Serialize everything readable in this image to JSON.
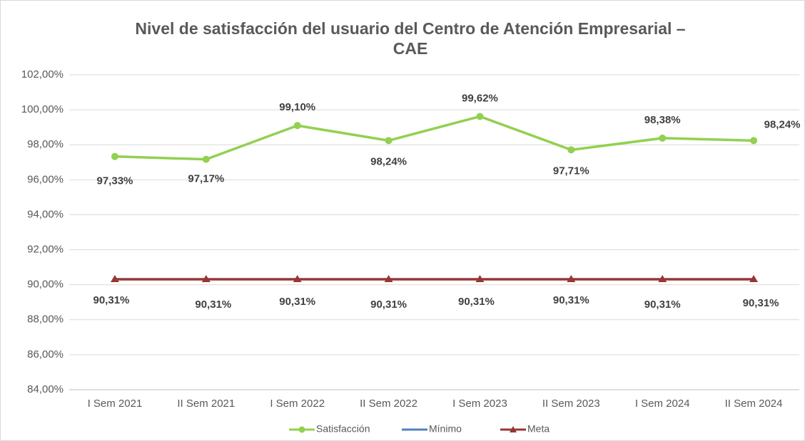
{
  "chart_data": {
    "type": "line",
    "title": [
      "Nivel de satisfacción del usuario del Centro de Atención Empresarial –",
      "CAE"
    ],
    "categories": [
      "I Sem 2021",
      "II Sem 2021",
      "I Sem 2022",
      "II Sem 2022",
      "I Sem 2023",
      "II Sem 2023",
      "I Sem 2024",
      "II Sem 2024"
    ],
    "series": [
      {
        "name": "Satisfacción",
        "color": "#92d050",
        "marker": "circle",
        "values": [
          97.33,
          97.17,
          99.1,
          98.24,
          99.62,
          97.71,
          98.38,
          98.24
        ],
        "value_labels": [
          "97,33%",
          "97,17%",
          "99,10%",
          "98,24%",
          "99,62%",
          "97,71%",
          "98,38%",
          "98,24%"
        ]
      },
      {
        "name": "Mínimo",
        "color": "#4f81bd",
        "marker": "none",
        "values": [
          null,
          null,
          null,
          null,
          null,
          null,
          null,
          null
        ]
      },
      {
        "name": "Meta",
        "color": "#953735",
        "marker": "triangle",
        "values": [
          90.31,
          90.31,
          90.31,
          90.31,
          90.31,
          90.31,
          90.31,
          90.31
        ],
        "value_labels": [
          "90,31%",
          "90,31%",
          "90,31%",
          "90,31%",
          "90,31%",
          "90,31%",
          "90,31%",
          "90,31%"
        ]
      }
    ],
    "ylim": [
      84,
      102
    ],
    "yticks": [
      {
        "value": 84,
        "label": "84,00%"
      },
      {
        "value": 86,
        "label": "86,00%"
      },
      {
        "value": 88,
        "label": "88,00%"
      },
      {
        "value": 90,
        "label": "90,00%"
      },
      {
        "value": 92,
        "label": "92,00%"
      },
      {
        "value": 94,
        "label": "94,00%"
      },
      {
        "value": 96,
        "label": "96,00%"
      },
      {
        "value": 98,
        "label": "98,00%"
      },
      {
        "value": 100,
        "label": "100,00%"
      },
      {
        "value": 102,
        "label": "102,00%"
      }
    ],
    "grid": true,
    "legend": "bottom"
  }
}
